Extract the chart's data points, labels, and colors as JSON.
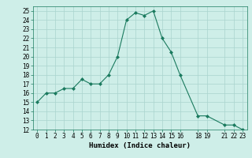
{
  "x": [
    0,
    1,
    2,
    3,
    4,
    5,
    6,
    7,
    8,
    9,
    10,
    11,
    12,
    13,
    14,
    15,
    16,
    18,
    19,
    21,
    22,
    23
  ],
  "y": [
    15,
    16,
    16,
    16.5,
    16.5,
    17.5,
    17,
    17,
    18,
    20,
    24,
    24.8,
    24.5,
    25,
    22,
    20.5,
    18,
    13.5,
    13.5,
    12.5,
    12.5,
    12
  ],
  "line_color": "#1a7a5e",
  "marker": "D",
  "marker_size": 2,
  "bg_color": "#ceeee8",
  "grid_color": "#aad4ce",
  "xlabel": "Humidex (Indice chaleur)",
  "xlim": [
    -0.5,
    23.5
  ],
  "ylim": [
    12,
    25.5
  ],
  "xticks": [
    0,
    1,
    2,
    3,
    4,
    5,
    6,
    7,
    8,
    9,
    10,
    11,
    12,
    13,
    14,
    15,
    16,
    18,
    19,
    21,
    22,
    23
  ],
  "yticks": [
    12,
    13,
    14,
    15,
    16,
    17,
    18,
    19,
    20,
    21,
    22,
    23,
    24,
    25
  ],
  "xlabel_fontsize": 6.5,
  "tick_fontsize": 5.5
}
